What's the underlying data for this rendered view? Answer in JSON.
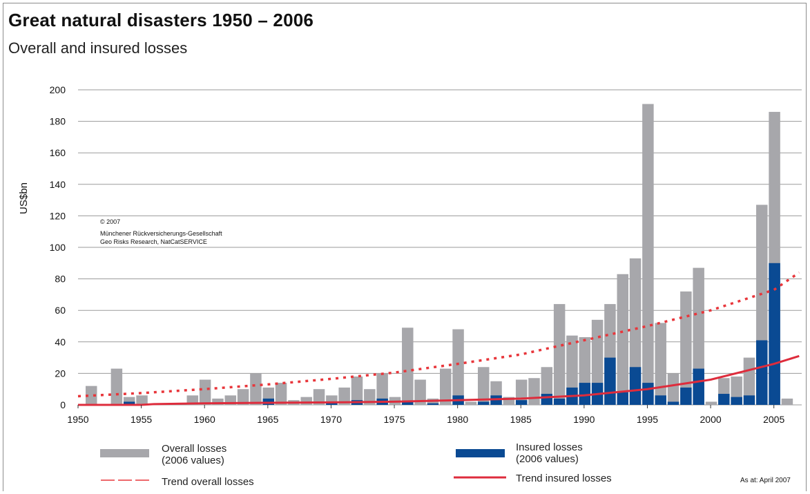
{
  "header": {
    "title": "Great natural disasters 1950 – 2006",
    "subtitle": "Overall and insured losses"
  },
  "copyright": {
    "line1": "© 2007",
    "line2": "Münchener Rückversicherungs-Gesellschaft",
    "line3": "Geo Risks Research, NatCatSERVICE"
  },
  "legend": {
    "overall_line1": "Overall losses",
    "overall_line2": "(2006 values)",
    "insured_line1": "Insured losses",
    "insured_line2": "(2006 values)",
    "trend_overall": "Trend overall losses",
    "trend_insured": "Trend insured losses"
  },
  "as_at": "As at: April 2007",
  "colors": {
    "overall": "#a7a7ab",
    "insured": "#0a4a93",
    "trend_overall": "#e8363b",
    "trend_insured": "#de2c3c",
    "grid": "#9a9a9a"
  },
  "chart_data": {
    "type": "bar",
    "ylabel": "US$bn",
    "xlabel": "",
    "ylim": [
      0,
      200
    ],
    "yticks": [
      0,
      20,
      40,
      60,
      80,
      100,
      120,
      140,
      160,
      180,
      200
    ],
    "xticks": [
      1950,
      1955,
      1960,
      1965,
      1970,
      1975,
      1980,
      1985,
      1990,
      1995,
      2000,
      2005
    ],
    "x": [
      1950,
      1951,
      1952,
      1953,
      1954,
      1955,
      1956,
      1957,
      1958,
      1959,
      1960,
      1961,
      1962,
      1963,
      1964,
      1965,
      1966,
      1967,
      1968,
      1969,
      1970,
      1971,
      1972,
      1973,
      1974,
      1975,
      1976,
      1977,
      1978,
      1979,
      1980,
      1981,
      1982,
      1983,
      1984,
      1985,
      1986,
      1987,
      1988,
      1989,
      1990,
      1991,
      1992,
      1993,
      1994,
      1995,
      1996,
      1997,
      1998,
      1999,
      2000,
      2001,
      2002,
      2003,
      2004,
      2005,
      2006
    ],
    "series": [
      {
        "name": "Overall losses (2006 values)",
        "stacking": "behind",
        "values": [
          0,
          12,
          0,
          23,
          5,
          6,
          0,
          0,
          0,
          6,
          16,
          4,
          6,
          10,
          20,
          11,
          14,
          3,
          5,
          10,
          6,
          11,
          18,
          10,
          20,
          5,
          49,
          16,
          4,
          23,
          48,
          2,
          24,
          15,
          5,
          16,
          17,
          24,
          64,
          44,
          43,
          54,
          64,
          83,
          93,
          191,
          52,
          20,
          72,
          87,
          2,
          17,
          18,
          30,
          127,
          186,
          4
        ]
      },
      {
        "name": "Insured losses (2006 values)",
        "stacking": "front",
        "values": [
          0,
          0,
          0,
          0,
          2,
          0,
          0,
          0,
          0,
          0,
          0,
          0,
          0,
          0,
          0,
          4,
          0,
          0,
          0,
          0,
          2,
          0,
          3,
          0,
          4,
          0,
          2,
          0,
          1,
          0,
          6,
          0,
          2,
          6,
          0,
          3,
          0,
          7,
          4,
          11,
          14,
          14,
          30,
          8,
          24,
          14,
          6,
          2,
          11,
          23,
          0,
          7,
          5,
          6,
          41,
          90,
          0
        ]
      },
      {
        "name": "Trend overall losses",
        "type": "line",
        "style": "dashed",
        "x": [
          1950,
          1955,
          1960,
          1965,
          1970,
          1975,
          1980,
          1985,
          1990,
          1995,
          2000,
          2005,
          2007
        ],
        "values": [
          5.5,
          7.5,
          10,
          13,
          16.5,
          20.5,
          26,
          32,
          41,
          50,
          60,
          73,
          84
        ]
      },
      {
        "name": "Trend insured losses",
        "type": "line",
        "style": "solid",
        "x": [
          1950,
          1955,
          1956,
          1960,
          1965,
          1970,
          1975,
          1980,
          1985,
          1990,
          1995,
          2000,
          2005,
          2007
        ],
        "values": [
          0,
          0,
          0.5,
          1,
          1.3,
          1.6,
          2,
          3,
          4,
          6,
          10,
          16,
          26,
          31
        ]
      }
    ]
  }
}
